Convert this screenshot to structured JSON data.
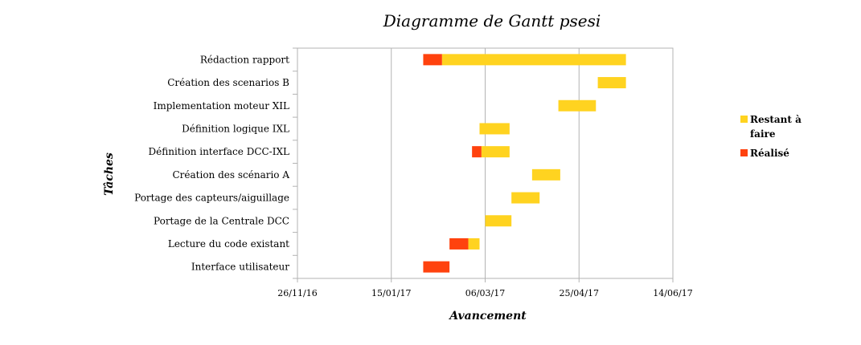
{
  "chart_data": {
    "type": "bar",
    "orientation": "horizontal",
    "stacked": true,
    "title": "Diagramme de Gantt psesi",
    "xlabel": "Avancement",
    "ylabel": "Tâches",
    "x_ticks": [
      "26/11/16",
      "15/01/17",
      "06/03/17",
      "25/04/17",
      "14/06/17"
    ],
    "xlim": [
      "2016-11-26",
      "2017-06-14"
    ],
    "grid": true,
    "legend_position": "right",
    "series": [
      {
        "name": "Réalisé",
        "color": "#ff420e"
      },
      {
        "name": "Restant à faire",
        "color": "#ffd320"
      }
    ],
    "legend_labels": [
      {
        "line1": "Restant à",
        "line2": "faire",
        "color": "#ffd320"
      },
      {
        "line1": "Réalisé",
        "line2": "",
        "color": "#ff420e"
      }
    ],
    "tasks": [
      {
        "name": "Rédaction rapport",
        "start": "2017-02-01",
        "done_end": "2017-02-11",
        "end": "2017-05-20"
      },
      {
        "name": "Création des scenarios B",
        "start": "2017-05-05",
        "done_end": "2017-05-05",
        "end": "2017-05-20"
      },
      {
        "name": "Implementation moteur XIL",
        "start": "2017-04-14",
        "done_end": "2017-04-14",
        "end": "2017-05-04"
      },
      {
        "name": "Définition logique IXL",
        "start": "2017-03-03",
        "done_end": "2017-03-03",
        "end": "2017-03-19"
      },
      {
        "name": "Définition interface DCC-IXL",
        "start": "2017-02-27",
        "done_end": "2017-03-04",
        "end": "2017-03-19"
      },
      {
        "name": "Création des scénario A",
        "start": "2017-03-31",
        "done_end": "2017-03-31",
        "end": "2017-04-15"
      },
      {
        "name": "Portage des capteurs/aiguillage",
        "start": "2017-03-20",
        "done_end": "2017-03-20",
        "end": "2017-04-04"
      },
      {
        "name": "Portage de la Centrale DCC",
        "start": "2017-03-06",
        "done_end": "2017-03-06",
        "end": "2017-03-20"
      },
      {
        "name": "Lecture du code existant",
        "start": "2017-02-15",
        "done_end": "2017-02-25",
        "end": "2017-03-03"
      },
      {
        "name": "Interface utilisateur",
        "start": "2017-02-01",
        "done_end": "2017-02-15",
        "end": "2017-02-15"
      }
    ]
  }
}
